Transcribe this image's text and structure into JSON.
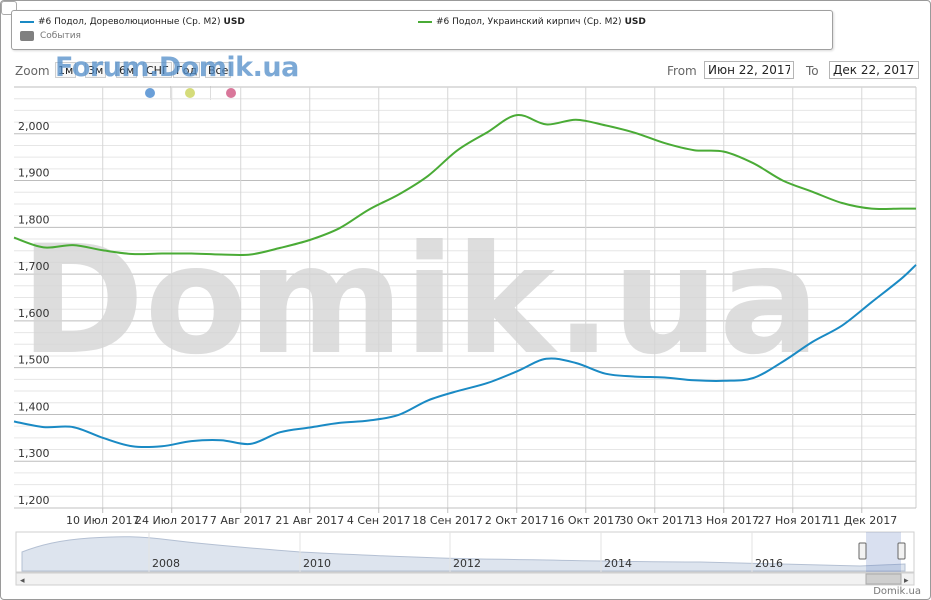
{
  "legend": {
    "series1_name": "#6 Подол, Дореволюционные (Ср. M2)",
    "series1_unit": "USD",
    "series2_name": "#6 Подол, Украинский кирпич (Ср. M2)",
    "series2_unit": "USD",
    "events_label": "События"
  },
  "colors": {
    "series1": "#1a8ac4",
    "series2": "#4aab36",
    "events": "#808080",
    "dot_blue": "#6a9fd8",
    "dot_yellow": "#d5dc7a",
    "dot_pink": "#d9779a"
  },
  "toolbar": {
    "zoom_label": "Zoom",
    "zoom_buttons": [
      "1м",
      "3м",
      "6м",
      "СНГ",
      "Год",
      "Все"
    ],
    "watermark_small": "Forum.Domik.ua",
    "from_label": "From",
    "from_value": "Июн 22, 2017",
    "to_label": "To",
    "to_value": "Дек 22, 2017"
  },
  "watermark_big": "Domik.ua",
  "footer_brand": "Domik.ua",
  "chart_data": {
    "type": "line",
    "title": "",
    "xlabel": "",
    "ylabel": "",
    "ylim": [
      1200,
      2100
    ],
    "y_ticks": [
      1200,
      1300,
      1400,
      1500,
      1600,
      1700,
      1800,
      1900,
      2000
    ],
    "y_tick_labels": [
      "1,200",
      "1,300",
      "1,400",
      "1,500",
      "1,600",
      "1,700",
      "1,800",
      "1,900",
      "2,000"
    ],
    "x_range": [
      "2017-06-22",
      "2017-12-22"
    ],
    "x_ticks": [
      "2017-07-10",
      "2017-07-24",
      "2017-08-07",
      "2017-08-21",
      "2017-09-04",
      "2017-09-18",
      "2017-10-02",
      "2017-10-16",
      "2017-10-30",
      "2017-11-13",
      "2017-11-27",
      "2017-12-11"
    ],
    "x_tick_labels": [
      "10 Июл 2017",
      "24 Июл 2017",
      "7 Авг 2017",
      "21 Авг 2017",
      "4 Сен 2017",
      "18 Сен 2017",
      "2 Окт 2017",
      "16 Окт 2017",
      "30 Окт 2017",
      "13 Ноя 2017",
      "27 Ноя 2017",
      "11 Дек 2017"
    ],
    "grid": true,
    "legend_position": "top",
    "series": [
      {
        "name": "#6 Подол, Дореволюционные (Ср. M2)",
        "x": [
          "2017-06-22",
          "2017-06-28",
          "2017-07-04",
          "2017-07-10",
          "2017-07-16",
          "2017-07-22",
          "2017-07-28",
          "2017-08-03",
          "2017-08-09",
          "2017-08-15",
          "2017-08-21",
          "2017-08-27",
          "2017-09-02",
          "2017-09-08",
          "2017-09-14",
          "2017-09-20",
          "2017-09-26",
          "2017-10-02",
          "2017-10-08",
          "2017-10-14",
          "2017-10-20",
          "2017-10-26",
          "2017-11-01",
          "2017-11-07",
          "2017-11-13",
          "2017-11-19",
          "2017-11-25",
          "2017-12-01",
          "2017-12-07",
          "2017-12-13",
          "2017-12-19",
          "2017-12-22"
        ],
        "values": [
          1385,
          1373,
          1373,
          1350,
          1332,
          1332,
          1343,
          1345,
          1337,
          1362,
          1372,
          1382,
          1387,
          1399,
          1430,
          1450,
          1467,
          1492,
          1519,
          1510,
          1487,
          1481,
          1479,
          1473,
          1472,
          1478,
          1513,
          1555,
          1590,
          1640,
          1690,
          1720
        ]
      },
      {
        "name": "#6 Подол, Украинский кирпич (Ср. M2)",
        "x": [
          "2017-06-22",
          "2017-06-28",
          "2017-07-04",
          "2017-07-10",
          "2017-07-16",
          "2017-07-22",
          "2017-07-28",
          "2017-08-03",
          "2017-08-09",
          "2017-08-15",
          "2017-08-21",
          "2017-08-27",
          "2017-09-02",
          "2017-09-08",
          "2017-09-14",
          "2017-09-20",
          "2017-09-26",
          "2017-10-02",
          "2017-10-08",
          "2017-10-14",
          "2017-10-20",
          "2017-10-26",
          "2017-11-01",
          "2017-11-07",
          "2017-11-13",
          "2017-11-19",
          "2017-11-25",
          "2017-12-01",
          "2017-12-07",
          "2017-12-13",
          "2017-12-19",
          "2017-12-22"
        ],
        "values": [
          1778,
          1757,
          1762,
          1751,
          1743,
          1744,
          1744,
          1742,
          1742,
          1756,
          1773,
          1798,
          1838,
          1870,
          1910,
          1965,
          2003,
          2040,
          2020,
          2030,
          2018,
          2002,
          1980,
          1965,
          1962,
          1937,
          1900,
          1876,
          1852,
          1840,
          1840,
          1840
        ]
      }
    ],
    "navigator": {
      "year_labels": [
        "2008",
        "2010",
        "2012",
        "2014",
        "2016"
      ]
    }
  }
}
